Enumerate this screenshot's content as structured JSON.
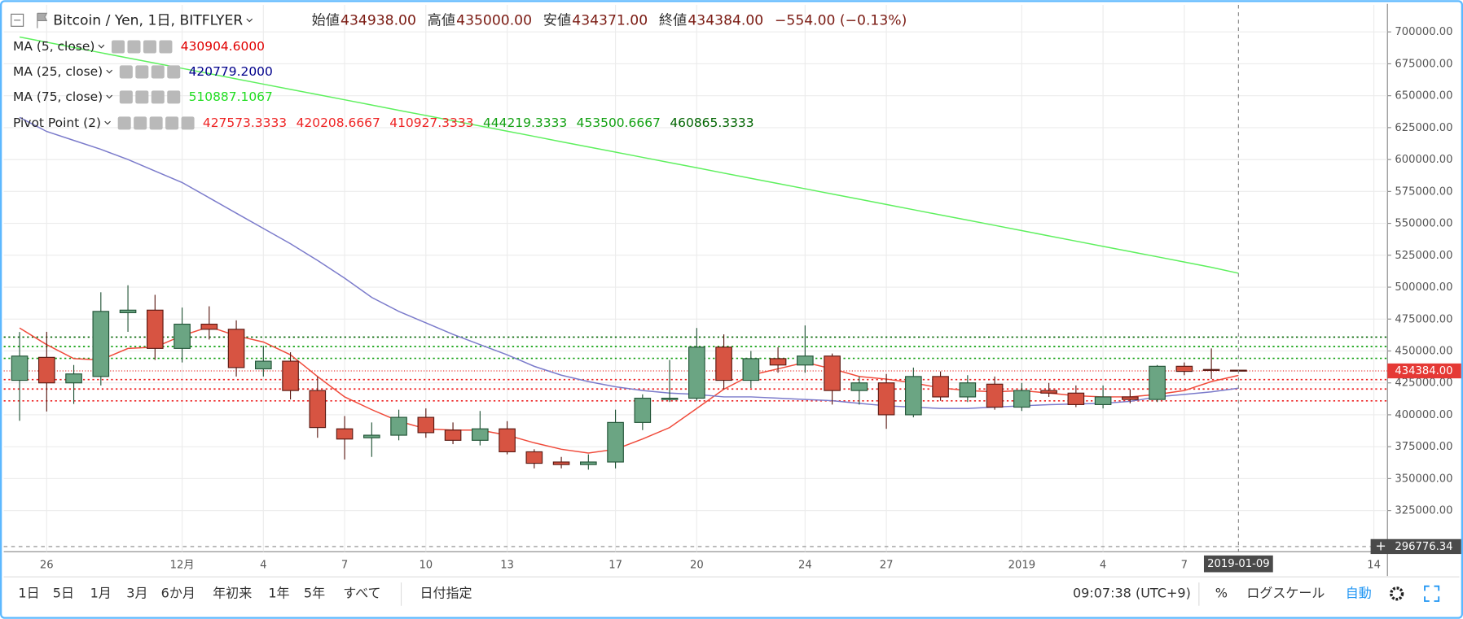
{
  "header": {
    "ohlc": [
      {
        "label": "始値",
        "value": "434938.00"
      },
      {
        "label": "高値",
        "value": "435000.00"
      },
      {
        "label": "安値",
        "value": "434371.00"
      },
      {
        "label": "終値",
        "value": "434384.00"
      }
    ],
    "change": "−554.00 (−0.13%)"
  },
  "chart_data": {
    "type": "candlestick",
    "title": "Bitcoin / Yen, 1日, BITFLYER",
    "categories": [
      null,
      "26",
      null,
      null,
      null,
      null,
      "12月",
      null,
      null,
      "4",
      null,
      null,
      "7",
      null,
      null,
      "10",
      null,
      null,
      "13",
      null,
      null,
      null,
      "17",
      null,
      null,
      "20",
      null,
      null,
      null,
      "24",
      null,
      null,
      "27",
      null,
      null,
      null,
      null,
      "2019",
      null,
      null,
      "4",
      null,
      null,
      "7",
      null,
      null,
      null,
      null,
      null,
      null,
      "14"
    ],
    "open": [
      427000,
      445000,
      425000,
      430000,
      480000,
      482000,
      452000,
      471000,
      467000,
      436000,
      442000,
      419000,
      389000,
      382000,
      384000,
      398000,
      388000,
      380000,
      389000,
      371000,
      363000,
      361000,
      363000,
      394000,
      412000,
      413000,
      453000,
      427000,
      444000,
      439000,
      446000,
      419000,
      425000,
      400000,
      430000,
      414000,
      424000,
      406000,
      419000,
      417000,
      408000,
      414000,
      412000,
      438000,
      435500,
      434938,
      null,
      null,
      null,
      null,
      null
    ],
    "high": [
      464900,
      465000,
      439000,
      496000,
      501500,
      494000,
      484000,
      485000,
      474000,
      454000,
      449000,
      430000,
      399000,
      394000,
      404000,
      405000,
      394000,
      403000,
      395000,
      373000,
      367000,
      369000,
      404000,
      416000,
      443000,
      468000,
      463000,
      450000,
      453000,
      470000,
      448000,
      430000,
      432000,
      437000,
      434000,
      431000,
      430000,
      425000,
      425000,
      423000,
      423000,
      420000,
      439000,
      441000,
      452000,
      435000,
      null,
      null,
      null,
      null,
      null
    ],
    "low": [
      395300,
      402600,
      408500,
      423000,
      465000,
      443000,
      441000,
      459000,
      430000,
      430000,
      412000,
      382000,
      365000,
      367000,
      380000,
      382000,
      377000,
      376000,
      369000,
      358000,
      358000,
      357000,
      358000,
      388000,
      410000,
      411000,
      420000,
      421000,
      433000,
      433000,
      408000,
      408000,
      389000,
      398000,
      411000,
      410000,
      404000,
      403000,
      414000,
      406000,
      405000,
      409000,
      410000,
      431000,
      428000,
      434371,
      null,
      null,
      null,
      null,
      null
    ],
    "close": [
      446000,
      425000,
      432000,
      481000,
      482000,
      452000,
      471000,
      467000,
      437000,
      442000,
      419000,
      390000,
      381000,
      384000,
      398000,
      386000,
      380000,
      389000,
      371000,
      362000,
      361000,
      363000,
      394000,
      413000,
      413000,
      453000,
      427000,
      444000,
      439000,
      446000,
      419000,
      425000,
      400000,
      430000,
      414000,
      425000,
      406000,
      419000,
      417000,
      408000,
      414000,
      412000,
      438000,
      434000,
      434938,
      434384,
      null,
      null,
      null,
      null,
      null
    ],
    "up_color": "#6ba583",
    "up_border": "#225437",
    "down_color": "#d75442",
    "down_border": "#5b1a13",
    "overlays": [
      {
        "name": "MA (5, close)",
        "color": "#f04a3a",
        "text_color": "#e00000",
        "legend_value": "430904.6000",
        "values": [
          468000,
          455000,
          444000,
          443000,
          452000,
          453000,
          462000,
          469000,
          462000,
          457000,
          447000,
          430000,
          414000,
          404000,
          395000,
          389000,
          388000,
          388000,
          384000,
          378000,
          373000,
          370000,
          373000,
          381000,
          390000,
          405000,
          420000,
          431000,
          436000,
          441000,
          436000,
          430000,
          428000,
          425000,
          421000,
          419000,
          418000,
          419000,
          417000,
          415000,
          414000,
          414000,
          416000,
          419000,
          426000,
          430904.6,
          null,
          null,
          null,
          null,
          null
        ]
      },
      {
        "name": "MA (25, close)",
        "color": "#7b7bcb",
        "text_color": "#00008b",
        "legend_value": "420779.2000",
        "values": [
          633000,
          622000,
          615000,
          608000,
          600000,
          591000,
          582000,
          570000,
          558000,
          546000,
          534000,
          521000,
          507000,
          492000,
          481000,
          472000,
          463000,
          455000,
          447000,
          438000,
          431000,
          426000,
          422000,
          419000,
          417000,
          416000,
          414000,
          414000,
          413000,
          412000,
          411000,
          409000,
          407000,
          406000,
          405000,
          405000,
          406000,
          407000,
          408000,
          408500,
          409000,
          410500,
          414000,
          416000,
          418000,
          420779.2,
          null,
          null,
          null,
          null,
          null
        ]
      },
      {
        "name": "MA (75, close)",
        "color": "#5ef05e",
        "text_color": "#22dd22",
        "legend_value": "510887.1067",
        "values": [
          696000,
          691900,
          687800,
          683700,
          679600,
          675500,
          671400,
          667300,
          663200,
          659100,
          655000,
          650900,
          646800,
          642700,
          638600,
          634500,
          630400,
          626300,
          622200,
          618100,
          614000,
          609900,
          605800,
          601700,
          597600,
          593500,
          589400,
          585300,
          581200,
          577100,
          573000,
          568900,
          564800,
          560700,
          556600,
          552500,
          548400,
          544300,
          540200,
          536100,
          532000,
          527900,
          523800,
          519700,
          515600,
          510887.1067,
          null,
          null,
          null,
          null,
          null
        ]
      }
    ],
    "pivot": {
      "name": "Pivot Point (2)",
      "levels": [
        {
          "value": 427573.3333,
          "color": "#ee2222"
        },
        {
          "value": 420208.6667,
          "color": "#ee2222"
        },
        {
          "value": 410927.3333,
          "color": "#ee2222"
        },
        {
          "value": 444219.3333,
          "color": "#11a011"
        },
        {
          "value": 453500.6667,
          "color": "#11a011"
        },
        {
          "value": 460865.3333,
          "color": "#006400"
        }
      ]
    },
    "last_price": {
      "value": 434384,
      "label": "434384.00",
      "color": "#e53935"
    },
    "crosshair": {
      "x_label": "2019-01-09",
      "y": 296776.34
    },
    "ylim": [
      292700,
      721200
    ],
    "yticks": [
      {
        "value": 325000,
        "label": "325000.00"
      },
      {
        "value": 350000,
        "label": "350000.00"
      },
      {
        "value": 375000,
        "label": "375000.00"
      },
      {
        "value": 400000,
        "label": "400000.00"
      },
      {
        "value": 425000,
        "label": "425000.00"
      },
      {
        "value": 450000,
        "label": "450000.00"
      },
      {
        "value": 475000,
        "label": "475000.00"
      },
      {
        "value": 500000,
        "label": "500000.00"
      },
      {
        "value": 525000,
        "label": "525000.00"
      },
      {
        "value": 550000,
        "label": "550000.00"
      },
      {
        "value": 575000,
        "label": "575000.00"
      },
      {
        "value": 600000,
        "label": "600000.00"
      },
      {
        "value": 625000,
        "label": "625000.00"
      },
      {
        "value": 650000,
        "label": "650000.00"
      },
      {
        "value": 675000,
        "label": "675000.00"
      },
      {
        "value": 700000,
        "label": "700000.00"
      }
    ],
    "grid": true
  },
  "toolbar": {
    "ranges": [
      "1日",
      "5日",
      "1月",
      "3月",
      "6か月",
      "年初来",
      "1年",
      "5年",
      "すべて"
    ],
    "goto": "日付指定",
    "time": "09:07:38 (UTC+9)",
    "percent": "%",
    "log": "ログスケール",
    "auto": "自動"
  }
}
